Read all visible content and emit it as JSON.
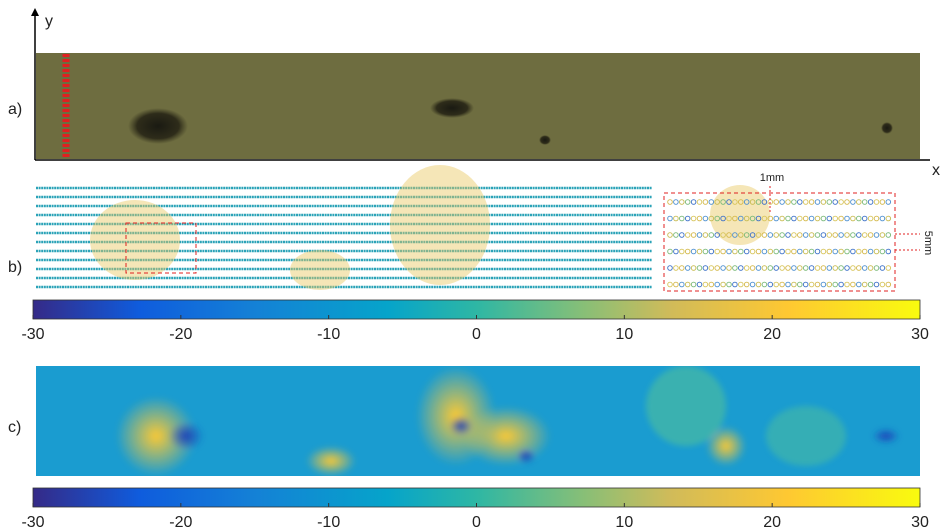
{
  "axes": {
    "y_label": "y",
    "x_label": "x"
  },
  "panels": [
    {
      "label": "a)"
    },
    {
      "label": "b)",
      "annotations": [
        "1mm",
        "5mm"
      ]
    },
    {
      "label": "c)"
    }
  ],
  "colorbars": [
    {
      "lim": [
        -30,
        30
      ],
      "ticks": [
        -30,
        -20,
        -10,
        0,
        10,
        20,
        30
      ]
    },
    {
      "lim": [
        -30,
        30
      ],
      "ticks": [
        -30,
        -20,
        -10,
        0,
        10,
        20,
        30
      ]
    }
  ]
}
